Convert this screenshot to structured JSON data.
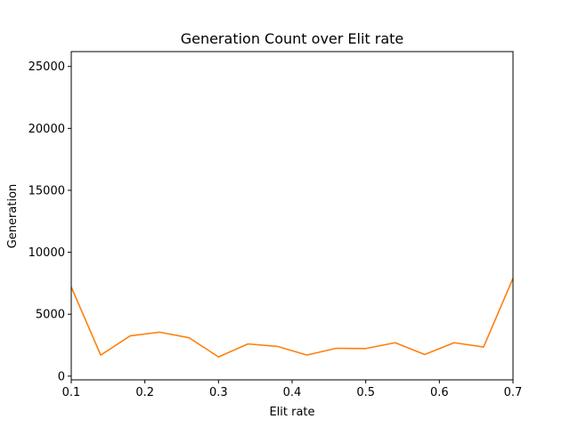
{
  "chart_data": {
    "type": "line",
    "title": "Generation Count over Elit rate",
    "xlabel": "Elit rate",
    "ylabel": "Generation",
    "xlim": [
      0.1,
      0.7
    ],
    "ylim": [
      -300,
      26200
    ],
    "xticks": [
      0.1,
      0.2,
      0.3,
      0.4,
      0.5,
      0.6,
      0.7
    ],
    "xtick_labels": [
      "0.1",
      "0.2",
      "0.3",
      "0.4",
      "0.5",
      "0.6",
      "0.7"
    ],
    "yticks": [
      0,
      5000,
      10000,
      15000,
      20000,
      25000
    ],
    "ytick_labels": [
      "0",
      "5000",
      "10000",
      "15000",
      "20000",
      "25000"
    ],
    "grid": false,
    "series": [
      {
        "color": "#ff7f0e",
        "x": [
          0.1,
          0.14,
          0.18,
          0.22,
          0.26,
          0.3,
          0.34,
          0.38,
          0.42,
          0.46,
          0.5,
          0.54,
          0.58,
          0.62,
          0.66,
          0.7
        ],
        "y": [
          7200,
          1700,
          3250,
          3550,
          3100,
          1550,
          2600,
          2400,
          1700,
          2250,
          2230,
          2700,
          1750,
          2700,
          2350,
          7900
        ]
      }
    ]
  }
}
